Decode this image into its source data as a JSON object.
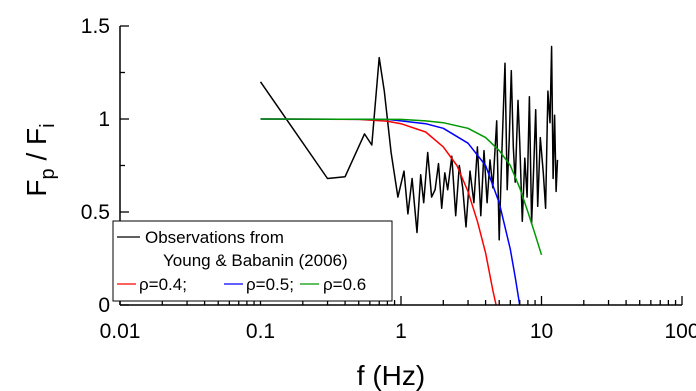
{
  "chart_data": {
    "type": "line",
    "xlabel": "f (Hz)",
    "ylabel": {
      "main": "F",
      "sub1": "p",
      "mid": " / F",
      "sub2": "i"
    },
    "x_scale": "log",
    "xlim": [
      0.01,
      100
    ],
    "ylim": [
      0,
      1.5
    ],
    "x_ticks": [
      0.01,
      0.1,
      1,
      10,
      100
    ],
    "x_tick_labels": [
      "0.01",
      "0.1",
      "1",
      "10",
      "100"
    ],
    "y_ticks": [
      0,
      0.5,
      1,
      1.5
    ],
    "y_tick_labels": [
      "0",
      "0.5",
      "1",
      "1.5"
    ],
    "grid": false,
    "legend": {
      "placement": "bottom-left",
      "observation_label_line1": "Observations from",
      "observation_label_line2": "Young & Babanin (2006)",
      "separator": ";"
    },
    "series": [
      {
        "name": "Observations from Young & Babanin (2006)",
        "color": "#000000",
        "points": [
          [
            0.1,
            1.2
          ],
          [
            0.3,
            0.68
          ],
          [
            0.4,
            0.69
          ],
          [
            0.55,
            0.92
          ],
          [
            0.62,
            0.86
          ],
          [
            0.7,
            1.33
          ],
          [
            0.76,
            1.15
          ],
          [
            0.85,
            0.82
          ],
          [
            0.95,
            0.58
          ],
          [
            1.05,
            0.72
          ],
          [
            1.12,
            0.49
          ],
          [
            1.2,
            0.68
          ],
          [
            1.3,
            0.39
          ],
          [
            1.38,
            0.7
          ],
          [
            1.45,
            0.55
          ],
          [
            1.55,
            0.82
          ],
          [
            1.65,
            0.58
          ],
          [
            1.75,
            0.62
          ],
          [
            1.85,
            0.76
          ],
          [
            1.95,
            0.52
          ],
          [
            2.05,
            0.71
          ],
          [
            2.15,
            0.62
          ],
          [
            2.3,
            0.8
          ],
          [
            2.45,
            0.48
          ],
          [
            2.6,
            0.75
          ],
          [
            2.75,
            0.63
          ],
          [
            2.9,
            0.42
          ],
          [
            3.1,
            0.72
          ],
          [
            3.3,
            0.55
          ],
          [
            3.5,
            0.85
          ],
          [
            3.7,
            0.48
          ],
          [
            3.9,
            0.83
          ],
          [
            4.1,
            0.55
          ],
          [
            4.3,
            0.78
          ],
          [
            4.5,
            0.63
          ],
          [
            4.8,
            0.99
          ],
          [
            5.0,
            0.35
          ],
          [
            5.2,
            0.78
          ],
          [
            5.5,
            1.3
          ],
          [
            5.7,
            0.62
          ],
          [
            5.9,
            0.9
          ],
          [
            6.1,
            1.26
          ],
          [
            6.3,
            0.85
          ],
          [
            6.5,
            0.66
          ],
          [
            6.8,
            1.1
          ],
          [
            7.0,
            0.88
          ],
          [
            7.3,
            0.45
          ],
          [
            7.6,
            0.79
          ],
          [
            7.9,
            0.58
          ],
          [
            8.2,
            1.12
          ],
          [
            8.5,
            0.44
          ],
          [
            8.8,
            0.74
          ],
          [
            9.1,
            1.05
          ],
          [
            9.4,
            0.53
          ],
          [
            9.8,
            0.9
          ],
          [
            10.3,
            0.71
          ],
          [
            10.7,
            0.52
          ],
          [
            11.1,
            1.15
          ],
          [
            11.5,
            0.98
          ],
          [
            11.8,
            1.39
          ],
          [
            12.1,
            0.68
          ],
          [
            12.4,
            1.02
          ],
          [
            12.7,
            0.61
          ],
          [
            13.0,
            0.78
          ]
        ]
      },
      {
        "name": "ρ=0.4",
        "color": "#ff0000",
        "points": [
          [
            0.1,
            1.0
          ],
          [
            0.5,
            0.998
          ],
          [
            0.8,
            0.988
          ],
          [
            1.0,
            0.975
          ],
          [
            1.5,
            0.93
          ],
          [
            2.0,
            0.85
          ],
          [
            2.5,
            0.75
          ],
          [
            3.0,
            0.61
          ],
          [
            3.5,
            0.45
          ],
          [
            4.0,
            0.28
          ],
          [
            4.5,
            0.08
          ],
          [
            4.75,
            0.0
          ]
        ]
      },
      {
        "name": "ρ=0.5",
        "color": "#0000ff",
        "points": [
          [
            0.1,
            1.0
          ],
          [
            0.8,
            0.998
          ],
          [
            1.0,
            0.99
          ],
          [
            1.5,
            0.975
          ],
          [
            2.0,
            0.95
          ],
          [
            3.0,
            0.87
          ],
          [
            4.0,
            0.75
          ],
          [
            5.0,
            0.55
          ],
          [
            6.0,
            0.3
          ],
          [
            6.5,
            0.15
          ],
          [
            7.0,
            0.0
          ]
        ]
      },
      {
        "name": "ρ=0.6",
        "color": "#009900",
        "points": [
          [
            0.1,
            1.0
          ],
          [
            1.0,
            0.998
          ],
          [
            1.5,
            0.99
          ],
          [
            2.0,
            0.98
          ],
          [
            3.0,
            0.95
          ],
          [
            4.0,
            0.9
          ],
          [
            5.0,
            0.83
          ],
          [
            6.0,
            0.75
          ],
          [
            7.0,
            0.63
          ],
          [
            8.0,
            0.5
          ],
          [
            9.0,
            0.38
          ],
          [
            10.0,
            0.27
          ]
        ]
      }
    ]
  }
}
